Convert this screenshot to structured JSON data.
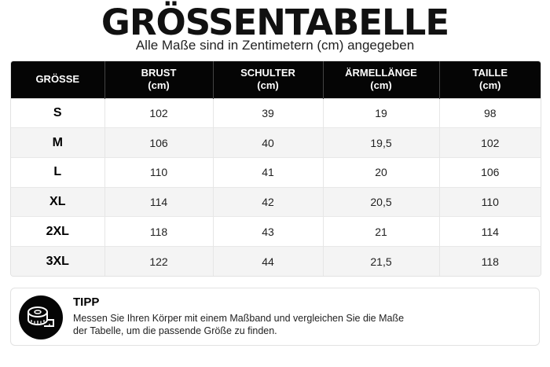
{
  "header": {
    "title": "GRÖSSENTABELLE",
    "subtitle": "Alle Maße sind in Zentimetern (cm) angegeben"
  },
  "table": {
    "columns": [
      {
        "name": "GRÖSSE",
        "unit": ""
      },
      {
        "name": "BRUST",
        "unit": "(cm)"
      },
      {
        "name": "SCHULTER",
        "unit": "(cm)"
      },
      {
        "name": "ÄRMELLÄNGE",
        "unit": "(cm)"
      },
      {
        "name": "TAILLE",
        "unit": "(cm)"
      }
    ],
    "rows": [
      [
        "S",
        "102",
        "39",
        "19",
        "98"
      ],
      [
        "M",
        "106",
        "40",
        "19,5",
        "102"
      ],
      [
        "L",
        "110",
        "41",
        "20",
        "106"
      ],
      [
        "XL",
        "114",
        "42",
        "20,5",
        "110"
      ],
      [
        "2XL",
        "118",
        "43",
        "21",
        "114"
      ],
      [
        "3XL",
        "122",
        "44",
        "21,5",
        "118"
      ]
    ]
  },
  "tip": {
    "icon": "measuring-tape-icon",
    "title": "TIPP",
    "text_line1": "Messen Sie Ihren Körper mit einem Maßband und vergleichen Sie die Maße",
    "text_line2": "der Tabelle, um die passende Größe zu finden."
  },
  "colors": {
    "header_bg": "#050505",
    "stripe_bg": "#f4f4f4",
    "text": "#111111"
  }
}
